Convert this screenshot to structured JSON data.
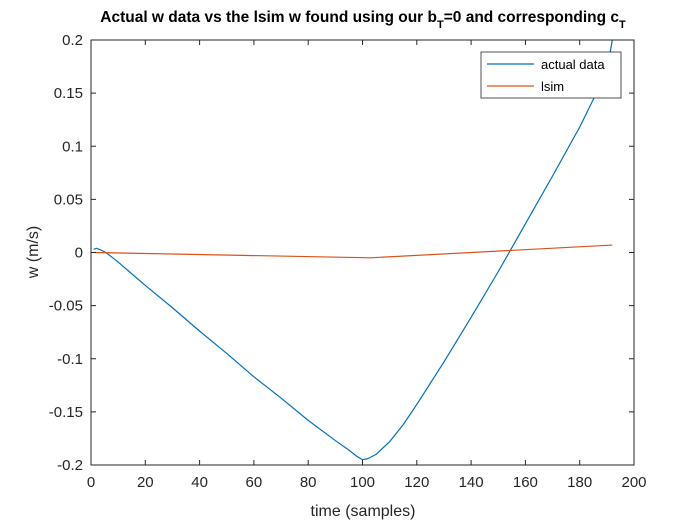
{
  "chart_data": {
    "type": "line",
    "title": {
      "segments": [
        {
          "text": "Actual w data vs the lsim w found using our b",
          "sub": false
        },
        {
          "text": "T",
          "sub": true
        },
        {
          "text": "=0 and corresponding c",
          "sub": false
        },
        {
          "text": "T",
          "sub": true
        }
      ]
    },
    "xlabel": "time (samples)",
    "ylabel": "w (m/s)",
    "xlim": [
      0,
      200
    ],
    "ylim": [
      -0.2,
      0.2
    ],
    "xticks": [
      0,
      20,
      40,
      60,
      80,
      100,
      120,
      140,
      160,
      180,
      200
    ],
    "yticks": [
      -0.2,
      -0.15,
      -0.1,
      -0.05,
      0,
      0.05,
      0.1,
      0.15,
      0.2
    ],
    "ytick_labels": [
      "-0.2",
      "-0.15",
      "-0.1",
      "-0.05",
      "0",
      "0.05",
      "0.1",
      "0.15",
      "0.2"
    ],
    "grid": false,
    "legend_position": "top-right",
    "series": [
      {
        "name": "actual data",
        "color": "#0072BD",
        "x": [
          1,
          2,
          4,
          6,
          8,
          10,
          15,
          20,
          30,
          40,
          50,
          60,
          70,
          80,
          90,
          95,
          98,
          100,
          102,
          105,
          110,
          115,
          120,
          130,
          140,
          150,
          160,
          170,
          180,
          190,
          192
        ],
        "y": [
          0.003,
          0.004,
          0.002,
          -0.001,
          -0.005,
          -0.009,
          -0.02,
          -0.031,
          -0.052,
          -0.074,
          -0.095,
          -0.117,
          -0.137,
          -0.158,
          -0.177,
          -0.186,
          -0.192,
          -0.195,
          -0.194,
          -0.19,
          -0.178,
          -0.162,
          -0.143,
          -0.103,
          -0.061,
          -0.018,
          0.027,
          0.072,
          0.118,
          0.17,
          0.2
        ]
      },
      {
        "name": "lsim",
        "color": "#D95319",
        "x": [
          1,
          103,
          192
        ],
        "y": [
          0.0,
          -0.005,
          0.007
        ]
      }
    ]
  }
}
